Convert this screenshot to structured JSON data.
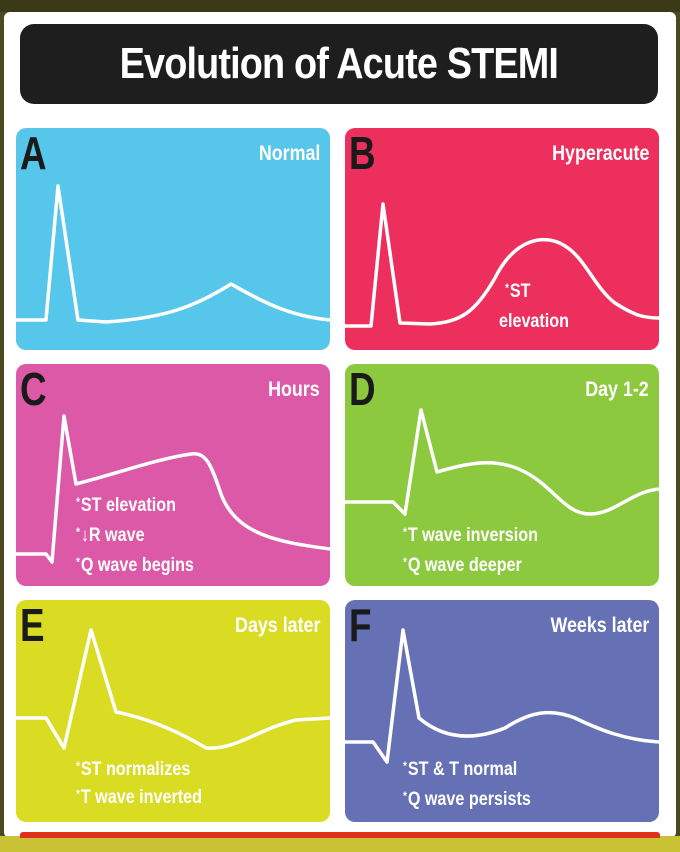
{
  "title": "Evolution of Acute STEMI",
  "panels": [
    {
      "letter": "A",
      "stage": "Normal",
      "color": "#56c6ea",
      "notes": []
    },
    {
      "letter": "B",
      "stage": "Hyperacute",
      "color": "#ec2f5d",
      "notes": [
        "ST",
        "elevation"
      ]
    },
    {
      "letter": "C",
      "stage": "Hours",
      "color": "#dc59a8",
      "notes": [
        "ST elevation",
        "↓R wave",
        "Q wave begins"
      ]
    },
    {
      "letter": "D",
      "stage": "Day 1-2",
      "color": "#8dc93f",
      "notes": [
        "T wave inversion",
        "Q wave deeper"
      ]
    },
    {
      "letter": "E",
      "stage": "Days later",
      "color": "#d9dc23",
      "notes": [
        "ST normalizes",
        "T wave inverted"
      ]
    },
    {
      "letter": "F",
      "stage": "Weeks later",
      "color": "#6670b5",
      "notes": [
        "ST & T normal",
        "Q wave persists"
      ]
    }
  ],
  "colors": {
    "title_bg": "#1e1e1e",
    "trace": "#ffffff",
    "letter": "#1a1a1a"
  }
}
